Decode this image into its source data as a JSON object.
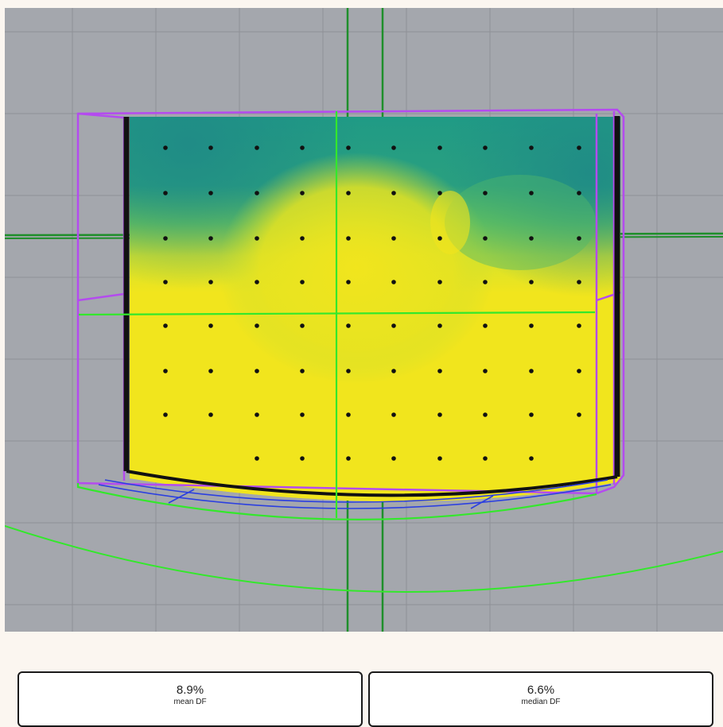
{
  "metrics": {
    "mean": {
      "value": "8.9%",
      "label": "mean DF"
    },
    "median": {
      "value": "6.6%",
      "label": "median DF"
    }
  },
  "colors": {
    "viewport_background": "#a4a7ad",
    "grid": "#8e9197",
    "axis_green": "#1f8f2b",
    "bright_green": "#33e82b",
    "bounding_box": "#b44bef",
    "boundary": "#111111",
    "sensor_dot": "#111111",
    "df_low": "#1f9a86",
    "df_mid": "#8cd64a",
    "df_high": "#f1e51d",
    "blue_edges": "#2b3fe0"
  },
  "icons": {
    "sensor_point": "dot-icon"
  }
}
